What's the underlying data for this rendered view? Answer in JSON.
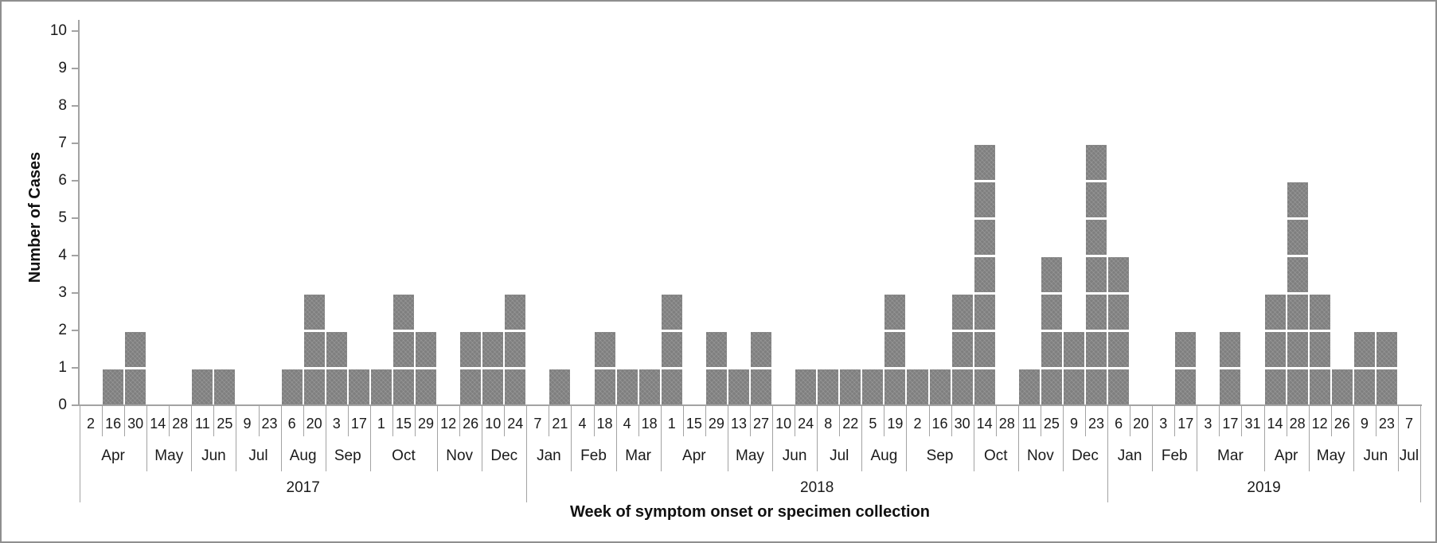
{
  "chart_data": {
    "type": "bar",
    "title": "",
    "xlabel": "Week of symptom onset or specimen collection",
    "ylabel": "Number of Cases",
    "ylim": [
      0,
      10
    ],
    "yticks": [
      "0",
      "1",
      "2",
      "3",
      "4",
      "5",
      "6",
      "7",
      "8",
      "9",
      "10"
    ],
    "grid": "off",
    "legend": "none",
    "bar_color": "#7f7f7f",
    "axis_color": "#a3a3a3",
    "text_color": "#1a1a1a",
    "years": [
      {
        "label": "2017",
        "months": [
          {
            "label": "Apr",
            "weeks": [
              {
                "w": "2",
                "cases": 0
              },
              {
                "w": "16",
                "cases": 1
              },
              {
                "w": "30",
                "cases": 2
              }
            ]
          },
          {
            "label": "May",
            "weeks": [
              {
                "w": "14",
                "cases": 0
              },
              {
                "w": "28",
                "cases": 0
              }
            ]
          },
          {
            "label": "Jun",
            "weeks": [
              {
                "w": "11",
                "cases": 1
              },
              {
                "w": "25",
                "cases": 1
              }
            ]
          },
          {
            "label": "Jul",
            "weeks": [
              {
                "w": "9",
                "cases": 0
              },
              {
                "w": "23",
                "cases": 0
              }
            ]
          },
          {
            "label": "Aug",
            "weeks": [
              {
                "w": "6",
                "cases": 1
              },
              {
                "w": "20",
                "cases": 3
              }
            ]
          },
          {
            "label": "Sep",
            "weeks": [
              {
                "w": "3",
                "cases": 2
              },
              {
                "w": "17",
                "cases": 1
              }
            ]
          },
          {
            "label": "Oct",
            "weeks": [
              {
                "w": "1",
                "cases": 1
              },
              {
                "w": "15",
                "cases": 3
              },
              {
                "w": "29",
                "cases": 2
              }
            ]
          },
          {
            "label": "Nov",
            "weeks": [
              {
                "w": "12",
                "cases": 0
              },
              {
                "w": "26",
                "cases": 2
              }
            ]
          },
          {
            "label": "Dec",
            "weeks": [
              {
                "w": "10",
                "cases": 2
              },
              {
                "w": "24",
                "cases": 3
              }
            ]
          }
        ]
      },
      {
        "label": "2018",
        "months": [
          {
            "label": "Jan",
            "weeks": [
              {
                "w": "7",
                "cases": 0
              },
              {
                "w": "21",
                "cases": 1
              }
            ]
          },
          {
            "label": "Feb",
            "weeks": [
              {
                "w": "4",
                "cases": 0
              },
              {
                "w": "18",
                "cases": 2
              }
            ]
          },
          {
            "label": "Mar",
            "weeks": [
              {
                "w": "4",
                "cases": 1
              },
              {
                "w": "18",
                "cases": 1
              }
            ]
          },
          {
            "label": "Apr",
            "weeks": [
              {
                "w": "1",
                "cases": 3
              },
              {
                "w": "15",
                "cases": 0
              },
              {
                "w": "29",
                "cases": 2
              }
            ]
          },
          {
            "label": "May",
            "weeks": [
              {
                "w": "13",
                "cases": 1
              },
              {
                "w": "27",
                "cases": 2
              }
            ]
          },
          {
            "label": "Jun",
            "weeks": [
              {
                "w": "10",
                "cases": 0
              },
              {
                "w": "24",
                "cases": 1
              }
            ]
          },
          {
            "label": "Jul",
            "weeks": [
              {
                "w": "8",
                "cases": 1
              },
              {
                "w": "22",
                "cases": 1
              }
            ]
          },
          {
            "label": "Aug",
            "weeks": [
              {
                "w": "5",
                "cases": 1
              },
              {
                "w": "19",
                "cases": 3
              }
            ]
          },
          {
            "label": "Sep",
            "weeks": [
              {
                "w": "2",
                "cases": 1
              },
              {
                "w": "16",
                "cases": 1
              },
              {
                "w": "30",
                "cases": 3
              }
            ]
          },
          {
            "label": "Oct",
            "weeks": [
              {
                "w": "14",
                "cases": 7
              },
              {
                "w": "28",
                "cases": 0
              }
            ]
          },
          {
            "label": "Nov",
            "weeks": [
              {
                "w": "11",
                "cases": 1
              },
              {
                "w": "25",
                "cases": 4
              }
            ]
          },
          {
            "label": "Dec",
            "weeks": [
              {
                "w": "9",
                "cases": 2
              },
              {
                "w": "23",
                "cases": 7
              }
            ]
          }
        ]
      },
      {
        "label": "2019",
        "months": [
          {
            "label": "Jan",
            "weeks": [
              {
                "w": "6",
                "cases": 4
              },
              {
                "w": "20",
                "cases": 0
              }
            ]
          },
          {
            "label": "Feb",
            "weeks": [
              {
                "w": "3",
                "cases": 0
              },
              {
                "w": "17",
                "cases": 2
              }
            ]
          },
          {
            "label": "Mar",
            "weeks": [
              {
                "w": "3",
                "cases": 0
              },
              {
                "w": "17",
                "cases": 2
              },
              {
                "w": "31",
                "cases": 0
              }
            ]
          },
          {
            "label": "Apr",
            "weeks": [
              {
                "w": "14",
                "cases": 3
              },
              {
                "w": "28",
                "cases": 6
              }
            ]
          },
          {
            "label": "May",
            "weeks": [
              {
                "w": "12",
                "cases": 3
              },
              {
                "w": "26",
                "cases": 1
              }
            ]
          },
          {
            "label": "Jun",
            "weeks": [
              {
                "w": "9",
                "cases": 2
              },
              {
                "w": "23",
                "cases": 2
              }
            ]
          },
          {
            "label": "Jul",
            "weeks": [
              {
                "w": "7",
                "cases": 0
              }
            ]
          }
        ]
      }
    ]
  }
}
